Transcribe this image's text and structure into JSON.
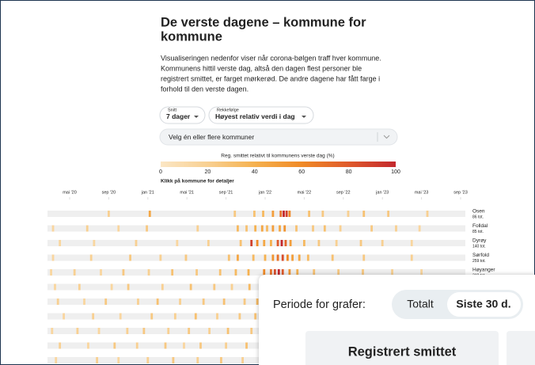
{
  "header": {
    "title_lines": [
      "De verste dagene – kommune for",
      "kommune"
    ],
    "intro_lines": [
      "Visualiseringen nedenfor viser når corona-bølgen traff hver kommune.",
      "Kommunens hittil verste dag, altså den dagen flest personer ble",
      "registrert smittet, er farget mørkerød. De andre dagene har fått farge i",
      "forhold til den verste dagen."
    ]
  },
  "controls": {
    "average": {
      "label": "Snitt",
      "value": "7 dager"
    },
    "order": {
      "label": "Rekkefølge",
      "value": "Høyest relativ verdi i dag"
    },
    "search_placeholder": "Velg én eller flere kommuner"
  },
  "legend": {
    "title": "Reg. smittet relativt til kommunens verste dag (%)",
    "ticks": [
      0,
      20,
      40,
      60,
      80,
      100
    ],
    "colors": [
      "#fbe6c4",
      "#f8d092",
      "#f5b14f",
      "#f08a26",
      "#df5a2b",
      "#c3282d"
    ]
  },
  "hint": "Klikk på kommune for detaljer",
  "heatmap": {
    "axis_labels": [
      "mai '20",
      "sep '20",
      "jan '21",
      "mai '21",
      "sep '21",
      "jan '22",
      "mai '22",
      "sep '22",
      "jan '23",
      "mai '23",
      "sep '23"
    ],
    "rows": [
      {
        "name": "Osen",
        "total": "86 tot.",
        "cells": [
          [
            4.0,
            20
          ],
          [
            8.2,
            45
          ],
          [
            16.9,
            25
          ],
          [
            18.9,
            30
          ],
          [
            19.8,
            35
          ],
          [
            20.8,
            50
          ],
          [
            21.6,
            70
          ],
          [
            21.9,
            100
          ],
          [
            22.2,
            90
          ],
          [
            22.5,
            60
          ],
          [
            24.5,
            30
          ],
          [
            25.9,
            25
          ],
          [
            28.5,
            20
          ],
          [
            30.1,
            30
          ],
          [
            32.6,
            25
          ],
          [
            36.6,
            20
          ]
        ]
      },
      {
        "name": "Folldal",
        "total": "85 tot.",
        "cells": [
          [
            -1.7,
            15
          ],
          [
            1.8,
            20
          ],
          [
            5.0,
            15
          ],
          [
            7.9,
            25
          ],
          [
            13.1,
            20
          ],
          [
            17.2,
            35
          ],
          [
            18.1,
            30
          ],
          [
            19.0,
            40
          ],
          [
            19.7,
            45
          ],
          [
            20.2,
            35
          ],
          [
            20.8,
            50
          ],
          [
            21.5,
            45
          ],
          [
            22.0,
            55
          ],
          [
            23.2,
            30
          ],
          [
            24.9,
            25
          ],
          [
            26.1,
            30
          ],
          [
            27.7,
            20
          ],
          [
            30.9,
            25
          ],
          [
            33.4,
            20
          ],
          [
            35.8,
            15
          ]
        ]
      },
      {
        "name": "Dyrøy",
        "total": "140 tot.",
        "cells": [
          [
            -1.0,
            15
          ],
          [
            2.5,
            15
          ],
          [
            6.8,
            20
          ],
          [
            11.0,
            15
          ],
          [
            14.2,
            20
          ],
          [
            17.5,
            30
          ],
          [
            18.6,
            90
          ],
          [
            19.2,
            60
          ],
          [
            19.9,
            45
          ],
          [
            20.6,
            40
          ],
          [
            21.3,
            80
          ],
          [
            21.7,
            100
          ],
          [
            22.1,
            75
          ],
          [
            22.6,
            50
          ],
          [
            24.0,
            35
          ],
          [
            25.5,
            25
          ],
          [
            27.3,
            20
          ],
          [
            29.8,
            25
          ],
          [
            32.0,
            20
          ],
          [
            35.0,
            15
          ]
        ]
      },
      {
        "name": "Sørfold",
        "total": "259 tot.",
        "cells": [
          [
            -1.7,
            15
          ],
          [
            2.2,
            20
          ],
          [
            6.2,
            25
          ],
          [
            9.3,
            20
          ],
          [
            11.9,
            25
          ],
          [
            16.3,
            30
          ],
          [
            17.2,
            45
          ],
          [
            18.8,
            35
          ],
          [
            20.0,
            40
          ],
          [
            20.8,
            55
          ],
          [
            21.3,
            70
          ],
          [
            21.8,
            85
          ],
          [
            22.3,
            60
          ],
          [
            22.8,
            50
          ],
          [
            23.5,
            45
          ],
          [
            24.4,
            35
          ],
          [
            26.9,
            30
          ],
          [
            30.1,
            25
          ],
          [
            35.0,
            20
          ]
        ]
      },
      {
        "name": "Høyanger",
        "total": "310 tot.",
        "cells": [
          [
            -1.9,
            15
          ],
          [
            0.5,
            20
          ],
          [
            3.2,
            15
          ],
          [
            5.5,
            25
          ],
          [
            8.1,
            20
          ],
          [
            10.5,
            30
          ],
          [
            13.0,
            25
          ],
          [
            15.4,
            30
          ],
          [
            17.0,
            35
          ],
          [
            18.3,
            40
          ],
          [
            19.9,
            60
          ],
          [
            20.6,
            70
          ],
          [
            21.0,
            85
          ],
          [
            21.4,
            100
          ],
          [
            21.8,
            80
          ],
          [
            22.5,
            55
          ],
          [
            23.3,
            40
          ],
          [
            25.0,
            30
          ],
          [
            27.5,
            25
          ],
          [
            30.0,
            25
          ],
          [
            33.0,
            20
          ],
          [
            36.0,
            15
          ]
        ]
      },
      {
        "cells": [
          [
            -1.5,
            15
          ],
          [
            1.0,
            20
          ],
          [
            4.3,
            15
          ],
          [
            6.0,
            25
          ],
          [
            9.5,
            20
          ],
          [
            12.4,
            30
          ],
          [
            14.8,
            25
          ],
          [
            16.6,
            20
          ],
          [
            18.4,
            35
          ]
        ]
      },
      {
        "cells": [
          [
            -1.2,
            20
          ],
          [
            1.5,
            15
          ],
          [
            3.7,
            25
          ],
          [
            7.0,
            20
          ],
          [
            9.0,
            30
          ],
          [
            11.3,
            20
          ],
          [
            13.7,
            25
          ],
          [
            15.8,
            30
          ],
          [
            17.9,
            25
          ],
          [
            19.2,
            35
          ]
        ]
      },
      {
        "cells": [
          [
            -0.6,
            15
          ],
          [
            2.4,
            20
          ],
          [
            5.2,
            15
          ],
          [
            8.4,
            25
          ],
          [
            10.8,
            20
          ],
          [
            12.9,
            30
          ],
          [
            15.1,
            20
          ],
          [
            17.4,
            25
          ],
          [
            19.0,
            30
          ]
        ]
      },
      {
        "cells": [
          [
            -1.8,
            15
          ],
          [
            0.8,
            20
          ],
          [
            3.0,
            15
          ],
          [
            5.9,
            20
          ],
          [
            7.6,
            25
          ],
          [
            10.1,
            20
          ],
          [
            12.2,
            25
          ],
          [
            14.3,
            20
          ],
          [
            16.2,
            30
          ],
          [
            18.6,
            25
          ]
        ]
      },
      {
        "cells": [
          [
            -1.0,
            20
          ],
          [
            1.9,
            15
          ],
          [
            4.6,
            25
          ],
          [
            6.9,
            20
          ],
          [
            9.8,
            25
          ],
          [
            11.7,
            15
          ],
          [
            13.4,
            25
          ],
          [
            16.0,
            20
          ],
          [
            18.1,
            30
          ]
        ]
      },
      {
        "cells": [
          [
            -1.4,
            15
          ],
          [
            2.8,
            20
          ],
          [
            5.0,
            15
          ],
          [
            8.0,
            20
          ],
          [
            10.6,
            25
          ],
          [
            13.1,
            20
          ],
          [
            15.5,
            25
          ],
          [
            17.7,
            20
          ]
        ]
      }
    ]
  },
  "panel": {
    "period_label": "Periode for grafer:",
    "options": [
      "Totalt",
      "Siste 30 d."
    ],
    "selected": 1,
    "card_title": "Registrert smittet"
  }
}
